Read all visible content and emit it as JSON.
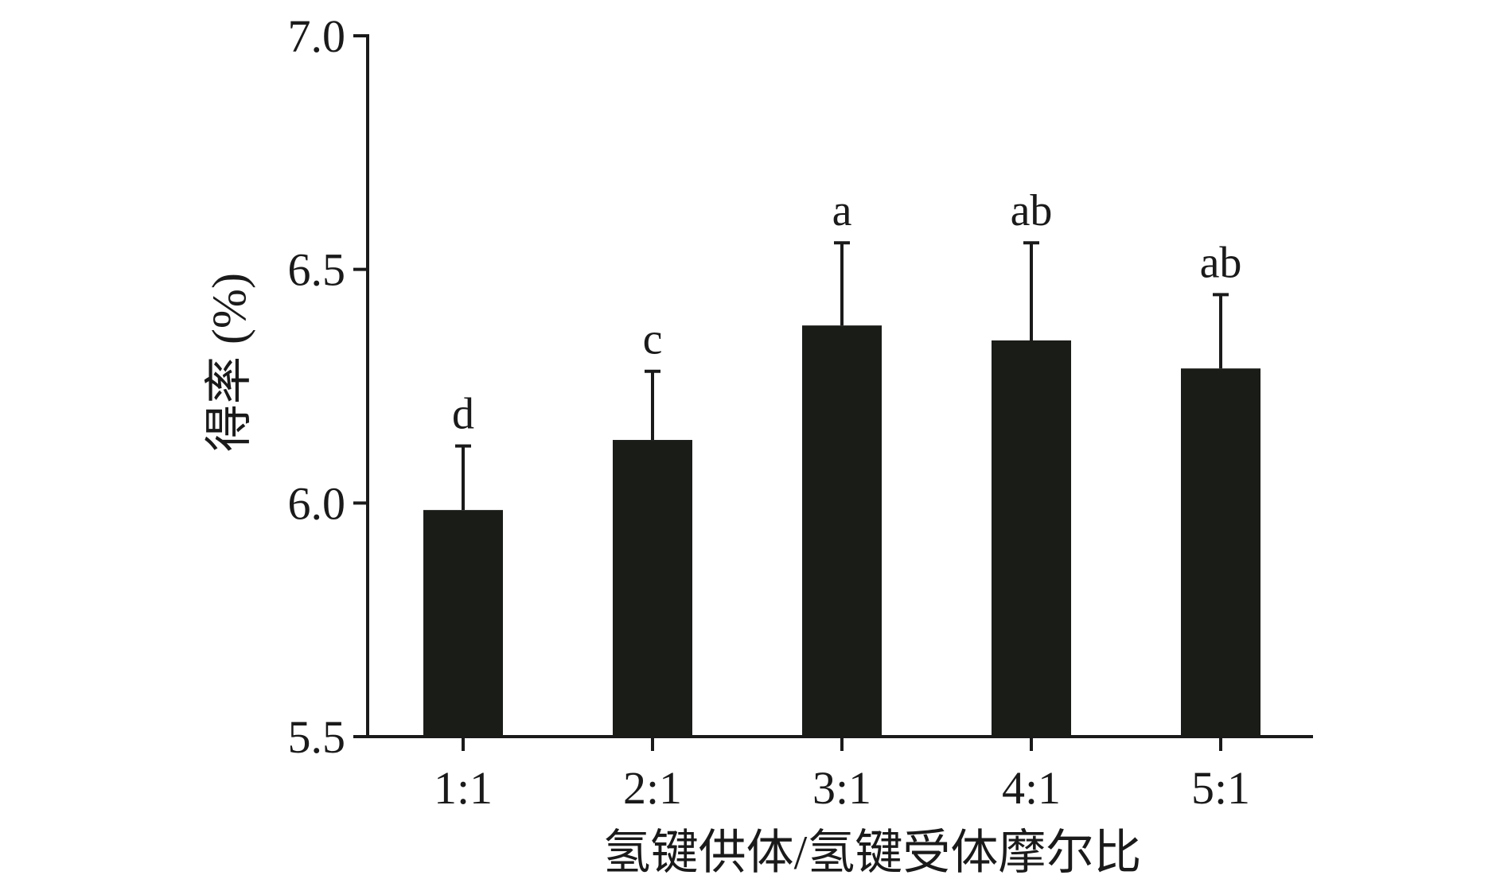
{
  "chart_data": {
    "type": "bar",
    "categories": [
      "1:1",
      "2:1",
      "3:1",
      "4:1",
      "5:1"
    ],
    "values": [
      5.985,
      6.135,
      6.38,
      6.348,
      6.288
    ],
    "errors": [
      0.137,
      0.147,
      0.177,
      0.209,
      0.158
    ],
    "significance": [
      "d",
      "c",
      "a",
      "ab",
      "ab"
    ],
    "xlabel": "氢键供体/氢键受体摩尔比",
    "ylabel": "得率 (%)",
    "ylim": [
      5.5,
      7.0
    ],
    "yticks": [
      "5.5",
      "6.0",
      "6.5",
      "7.0"
    ],
    "bar_color": "#1a1c18",
    "grid": false
  }
}
